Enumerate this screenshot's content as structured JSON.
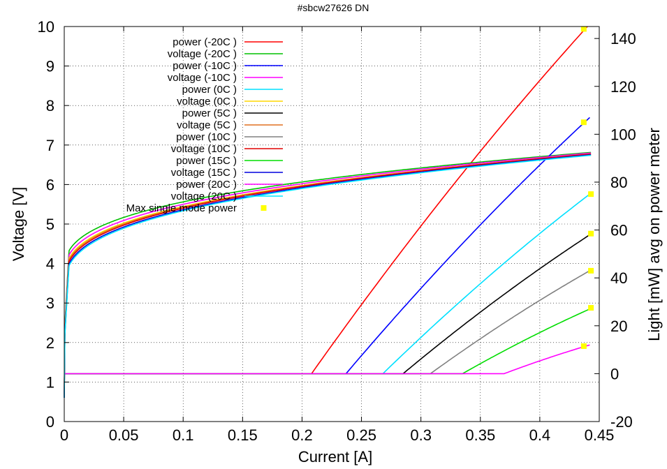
{
  "chart_data": {
    "type": "line",
    "title": "#sbcw27626 DN",
    "xlabel": "Current [A]",
    "ylabel": "Voltage [V]",
    "y2label": "Light [mW] avg on power meter",
    "xlim": [
      0,
      0.45
    ],
    "ylim": [
      0,
      10
    ],
    "y2lim": [
      -20,
      145
    ],
    "xticks": [
      "0",
      "0.05",
      "0.1",
      "0.15",
      "0.2",
      "0.25",
      "0.3",
      "0.35",
      "0.4",
      "0.45"
    ],
    "yticks": [
      "0",
      "1",
      "2",
      "3",
      "4",
      "5",
      "6",
      "7",
      "8",
      "9",
      "10"
    ],
    "y2ticks": [
      "-20",
      "0",
      "20",
      "40",
      "60",
      "80",
      "100",
      "120",
      "140"
    ],
    "grid": true,
    "legend_position": "top-left",
    "series": [
      {
        "name": "power (-20C )",
        "kind": "power",
        "color": "#ff0000",
        "threshold": 0.208,
        "end": [
          0.44,
          145
        ]
      },
      {
        "name": "voltage (-20C )",
        "kind": "voltage",
        "color": "#00c000",
        "v0": 1.8,
        "a": 3.73,
        "b": 4.1
      },
      {
        "name": "power (-10C )",
        "kind": "power",
        "color": "#0000ff",
        "threshold": 0.237,
        "end": [
          0.442,
          107
        ]
      },
      {
        "name": "voltage (-10C )",
        "kind": "voltage",
        "color": "#ff00ff",
        "v0": 1.8,
        "a": 3.6,
        "b": 4.25
      },
      {
        "name": "power (0C )",
        "kind": "power",
        "color": "#00e0ff",
        "threshold": 0.268,
        "end": [
          0.442,
          75
        ]
      },
      {
        "name": "voltage (0C )",
        "kind": "voltage",
        "color": "#ffd700",
        "v0": 1.8,
        "a": 3.5,
        "b": 4.35
      },
      {
        "name": "power (5C )",
        "kind": "power",
        "color": "#000000",
        "threshold": 0.285,
        "end": [
          0.442,
          58
        ]
      },
      {
        "name": "voltage (5C )",
        "kind": "voltage",
        "color": "#e07020",
        "v0": 1.8,
        "a": 3.45,
        "b": 4.42
      },
      {
        "name": "power (10C )",
        "kind": "power",
        "color": "#808080",
        "threshold": 0.308,
        "end": [
          0.442,
          43
        ]
      },
      {
        "name": "voltage (10C )",
        "kind": "voltage",
        "color": "#e00000",
        "v0": 1.8,
        "a": 3.4,
        "b": 4.48
      },
      {
        "name": "power (15C )",
        "kind": "power",
        "color": "#00dd00",
        "threshold": 0.335,
        "end": [
          0.442,
          27
        ]
      },
      {
        "name": "voltage (15C )",
        "kind": "voltage",
        "color": "#0000dd",
        "v0": 1.8,
        "a": 3.33,
        "b": 4.55
      },
      {
        "name": "power (20C )",
        "kind": "power",
        "color": "#ff00ff",
        "threshold": 0.37,
        "end": [
          0.442,
          12
        ]
      },
      {
        "name": "voltage (20C )",
        "kind": "voltage",
        "color": "#00e8ff",
        "v0": 1.8,
        "a": 3.28,
        "b": 4.6
      }
    ],
    "max_single_mode_power": {
      "name": "Max single mode power",
      "color": "#ffff00",
      "points": [
        [
          0.437,
          144
        ],
        [
          0.437,
          105
        ],
        [
          0.443,
          75
        ],
        [
          0.443,
          58.5
        ],
        [
          0.443,
          43
        ],
        [
          0.443,
          27.5
        ],
        [
          0.437,
          11.5
        ]
      ]
    }
  }
}
